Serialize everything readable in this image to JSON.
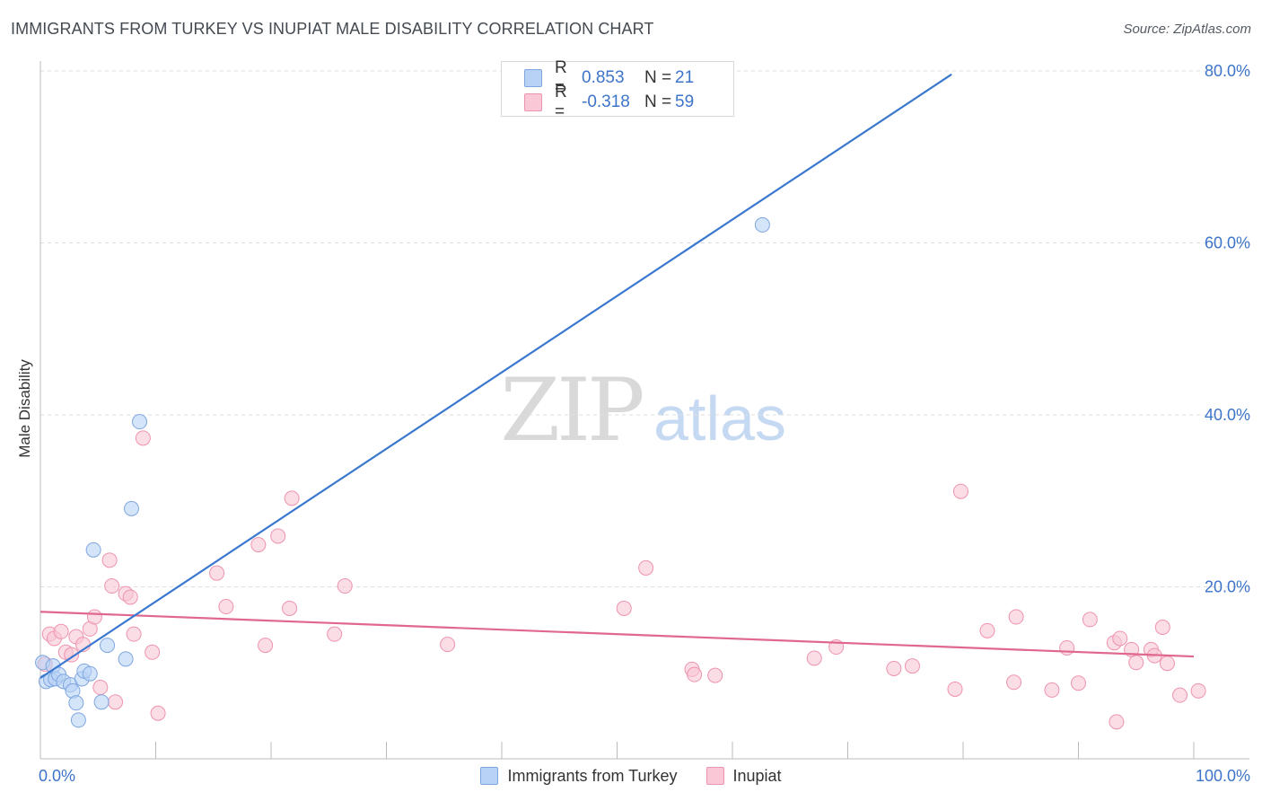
{
  "title": "IMMIGRANTS FROM TURKEY VS INUPIAT MALE DISABILITY CORRELATION CHART",
  "source": "Source: ZipAtlas.com",
  "watermark": {
    "zip": "ZIP",
    "atlas": "atlas"
  },
  "legend_top": [
    {
      "r_label": "R =",
      "r_value": "0.853",
      "n_label": "N =",
      "n_value": "21"
    },
    {
      "r_label": "R =",
      "r_value": "-0.318",
      "n_label": "N =",
      "n_value": "59"
    }
  ],
  "legend_bottom": [
    "Immigrants from Turkey",
    "Inupiat"
  ],
  "colors": {
    "turkey_fill": "#b7d2f5",
    "turkey_stroke": "#7ea6df",
    "turkey_line": "#3a78cf",
    "inupiat_fill": "#f9c7d5",
    "inupiat_stroke": "#ee93ad",
    "inupiat_line": "#e0688f",
    "axis_text": "#3d74c9",
    "grid": "#dddddd"
  },
  "chart_data": {
    "type": "scatter",
    "title": "IMMIGRANTS FROM TURKEY VS INUPIAT MALE DISABILITY CORRELATION CHART",
    "xlabel": "",
    "ylabel": "Male Disability",
    "xlim": [
      0,
      100
    ],
    "ylim": [
      0,
      80
    ],
    "x_tick_labels": [
      {
        "value": 0,
        "label": "0.0%"
      },
      {
        "value": 100,
        "label": "100.0%"
      }
    ],
    "y_tick_labels": [
      {
        "value": 20,
        "label": "20.0%"
      },
      {
        "value": 40,
        "label": "40.0%"
      },
      {
        "value": 60,
        "label": "60.0%"
      },
      {
        "value": 80,
        "label": "80.0%"
      }
    ],
    "series": [
      {
        "name": "Immigrants from Turkey",
        "r": 0.853,
        "n": 21,
        "trend": {
          "x": [
            0,
            79
          ],
          "y": [
            9.4,
            79.6
          ]
        },
        "points": [
          [
            0.2,
            11.2
          ],
          [
            0.5,
            9.0
          ],
          [
            0.9,
            9.2
          ],
          [
            1.1,
            10.8
          ],
          [
            1.3,
            9.3
          ],
          [
            1.6,
            9.8
          ],
          [
            2.0,
            9.0
          ],
          [
            2.6,
            8.6
          ],
          [
            2.8,
            7.9
          ],
          [
            3.1,
            6.5
          ],
          [
            3.3,
            4.5
          ],
          [
            3.6,
            9.3
          ],
          [
            3.8,
            10.2
          ],
          [
            4.3,
            9.9
          ],
          [
            4.6,
            24.3
          ],
          [
            5.3,
            6.6
          ],
          [
            5.8,
            13.2
          ],
          [
            7.4,
            11.6
          ],
          [
            7.9,
            29.1
          ],
          [
            8.6,
            39.2
          ],
          [
            62.6,
            62.1
          ]
        ]
      },
      {
        "name": "Inupiat",
        "r": -0.318,
        "n": 59,
        "trend": {
          "x": [
            0,
            100
          ],
          "y": [
            17.1,
            11.9
          ]
        },
        "points": [
          [
            0.4,
            11.0
          ],
          [
            0.8,
            14.5
          ],
          [
            1.2,
            14.0
          ],
          [
            1.8,
            14.8
          ],
          [
            2.2,
            12.4
          ],
          [
            2.7,
            12.1
          ],
          [
            3.1,
            14.2
          ],
          [
            3.7,
            13.3
          ],
          [
            4.3,
            15.1
          ],
          [
            4.7,
            16.5
          ],
          [
            5.2,
            8.3
          ],
          [
            6.0,
            23.1
          ],
          [
            6.2,
            20.1
          ],
          [
            6.5,
            6.6
          ],
          [
            7.4,
            19.2
          ],
          [
            7.8,
            18.8
          ],
          [
            8.1,
            14.5
          ],
          [
            8.9,
            37.3
          ],
          [
            9.7,
            12.4
          ],
          [
            10.2,
            5.3
          ],
          [
            15.3,
            21.6
          ],
          [
            16.1,
            17.7
          ],
          [
            18.9,
            24.9
          ],
          [
            19.5,
            13.2
          ],
          [
            20.6,
            25.9
          ],
          [
            21.6,
            17.5
          ],
          [
            21.8,
            30.3
          ],
          [
            25.5,
            14.5
          ],
          [
            26.4,
            20.1
          ],
          [
            35.3,
            13.3
          ],
          [
            50.6,
            17.5
          ],
          [
            52.5,
            22.2
          ],
          [
            56.5,
            10.4
          ],
          [
            56.7,
            9.8
          ],
          [
            58.5,
            9.7
          ],
          [
            67.1,
            11.7
          ],
          [
            69.0,
            13.0
          ],
          [
            74.0,
            10.5
          ],
          [
            75.6,
            10.8
          ],
          [
            79.3,
            8.1
          ],
          [
            79.8,
            31.1
          ],
          [
            82.1,
            14.9
          ],
          [
            84.4,
            8.9
          ],
          [
            84.6,
            16.5
          ],
          [
            87.7,
            8.0
          ],
          [
            89.0,
            12.9
          ],
          [
            90.0,
            8.8
          ],
          [
            91.0,
            16.2
          ],
          [
            93.1,
            13.5
          ],
          [
            93.3,
            4.3
          ],
          [
            93.6,
            14.0
          ],
          [
            94.6,
            12.7
          ],
          [
            95.0,
            11.2
          ],
          [
            96.3,
            12.7
          ],
          [
            96.6,
            12.0
          ],
          [
            97.3,
            15.3
          ],
          [
            97.7,
            11.1
          ],
          [
            98.8,
            7.4
          ],
          [
            100.4,
            7.9
          ]
        ]
      }
    ]
  }
}
